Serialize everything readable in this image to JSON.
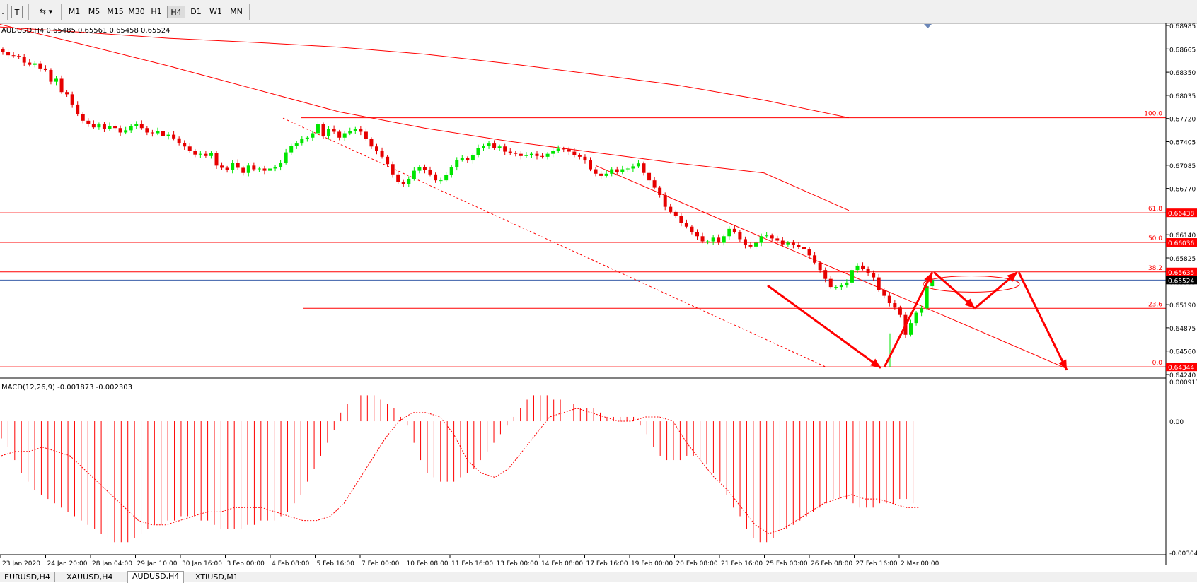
{
  "toolbar": {
    "timeframes": [
      "M1",
      "M5",
      "M15",
      "M30",
      "H1",
      "H4",
      "D1",
      "W1",
      "MN"
    ],
    "active": "H4"
  },
  "tabs": [
    {
      "label": "EURUSD,H4",
      "active": false
    },
    {
      "label": "XAUUSD,H4",
      "active": false
    },
    {
      "label": "AUDUSD,H4",
      "active": true
    },
    {
      "label": "XTIUSD,M1",
      "active": false
    }
  ],
  "colors": {
    "bull": "#00e600",
    "bear": "#e60000",
    "line": "#ff0000",
    "price_box": "#ff0000",
    "current_box": "#000000",
    "grid_text": "#000000",
    "current_line": "#3a5faa"
  },
  "chart_data": {
    "type": "candlestick",
    "symbol_info": "AUDUSD,H4  0.65485 0.65561 0.65458 0.65524",
    "ylim": [
      0.6424,
      0.68985
    ],
    "price_ticks": [
      "0.68985",
      "0.68665",
      "0.68350",
      "0.68035",
      "0.67720",
      "0.67405",
      "0.67085",
      "0.66770",
      "0.66455",
      "0.66140",
      "0.65825",
      "0.65505",
      "0.65190",
      "0.64875",
      "0.64560",
      "0.64240"
    ],
    "x_labels": [
      "23 Jan 2020",
      "24 Jan 20:00",
      "28 Jan 04:00",
      "29 Jan 10:00",
      "30 Jan 16:00",
      "3 Feb 00:00",
      "4 Feb 08:00",
      "5 Feb 16:00",
      "7 Feb 00:00",
      "10 Feb 08:00",
      "11 Feb 16:00",
      "13 Feb 00:00",
      "14 Feb 08:00",
      "17 Feb 16:00",
      "19 Feb 00:00",
      "20 Feb 08:00",
      "21 Feb 16:00",
      "25 Feb 00:00",
      "26 Feb 08:00",
      "27 Feb 16:00",
      "2 Mar 00:00"
    ],
    "fibonacci": [
      {
        "level": "100.0",
        "price": 0.6773,
        "box": ""
      },
      {
        "level": "61.8",
        "price": 0.66438,
        "box": "0.66438"
      },
      {
        "level": "50.0",
        "price": 0.66036,
        "box": "0.66036"
      },
      {
        "level": "38.2",
        "price": 0.65635,
        "box": "0.65635"
      },
      {
        "level": "23.6",
        "price": 0.6514,
        "box": ""
      },
      {
        "level": "0.0",
        "price": 0.64344,
        "box": "0.64344"
      }
    ],
    "current_price": 0.65524,
    "current_box": "0.65524",
    "closes": [
      0.6862,
      0.6858,
      0.6857,
      0.6856,
      0.6848,
      0.6845,
      0.6847,
      0.684,
      0.6838,
      0.6822,
      0.6826,
      0.6808,
      0.6805,
      0.6791,
      0.6778,
      0.6769,
      0.6765,
      0.676,
      0.6764,
      0.6758,
      0.6762,
      0.6759,
      0.6753,
      0.6756,
      0.6762,
      0.6765,
      0.6759,
      0.6753,
      0.6752,
      0.6755,
      0.6748,
      0.675,
      0.6745,
      0.6739,
      0.6734,
      0.6728,
      0.6723,
      0.6724,
      0.6721,
      0.6725,
      0.6708,
      0.6705,
      0.6702,
      0.6712,
      0.6705,
      0.6698,
      0.6708,
      0.6703,
      0.6704,
      0.6701,
      0.6704,
      0.6706,
      0.6712,
      0.6726,
      0.6735,
      0.6738,
      0.6744,
      0.6746,
      0.6752,
      0.6764,
      0.6748,
      0.6758,
      0.6754,
      0.6746,
      0.6752,
      0.6755,
      0.6758,
      0.6754,
      0.6744,
      0.6734,
      0.6728,
      0.672,
      0.671,
      0.6696,
      0.6686,
      0.6683,
      0.669,
      0.6701,
      0.6706,
      0.6702,
      0.6696,
      0.6688,
      0.6688,
      0.6695,
      0.6706,
      0.6716,
      0.6718,
      0.6715,
      0.6722,
      0.6732,
      0.6735,
      0.6738,
      0.6732,
      0.6734,
      0.6727,
      0.6725,
      0.6724,
      0.6721,
      0.6722,
      0.6724,
      0.6721,
      0.672,
      0.6724,
      0.6728,
      0.6731,
      0.673,
      0.6727,
      0.6722,
      0.672,
      0.6715,
      0.6703,
      0.6697,
      0.6694,
      0.6697,
      0.6703,
      0.6699,
      0.6703,
      0.6704,
      0.6707,
      0.6711,
      0.6698,
      0.6688,
      0.6678,
      0.6668,
      0.6652,
      0.6645,
      0.664,
      0.663,
      0.6625,
      0.6618,
      0.6612,
      0.6605,
      0.6605,
      0.661,
      0.6603,
      0.6612,
      0.6622,
      0.6618,
      0.6608,
      0.66,
      0.6598,
      0.6603,
      0.6612,
      0.6613,
      0.6609,
      0.6606,
      0.6601,
      0.6603,
      0.66,
      0.6597,
      0.6594,
      0.6586,
      0.6576,
      0.6566,
      0.6554,
      0.6543,
      0.6543,
      0.6545,
      0.6549,
      0.6566,
      0.6572,
      0.6568,
      0.6562,
      0.6556,
      0.6539,
      0.6531,
      0.6521,
      0.6515,
      0.6505,
      0.6478,
      0.6494,
      0.6508,
      0.6514,
      0.6544,
      0.65524
    ],
    "macd": {
      "label": "MACD(12,26,9) -0.001873 -0.002303",
      "ylim": [
        -0.003042,
        0.000917
      ],
      "ticks": [
        "0.000917",
        "0.00",
        "-0.003042"
      ],
      "hist": [
        -0.0004,
        -0.0006,
        -0.0009,
        -0.0012,
        -0.0014,
        -0.0016,
        -0.0017,
        -0.0018,
        -0.0019,
        -0.002,
        -0.0021,
        -0.0022,
        -0.0023,
        -0.0024,
        -0.0025,
        -0.0026,
        -0.0027,
        -0.0028,
        -0.0028,
        -0.0028,
        -0.0027,
        -0.0026,
        -0.0025,
        -0.0024,
        -0.0024,
        -0.0023,
        -0.0023,
        -0.0022,
        -0.0022,
        -0.0022,
        -0.0023,
        -0.0023,
        -0.0024,
        -0.0025,
        -0.0025,
        -0.0025,
        -0.0025,
        -0.0024,
        -0.0024,
        -0.0023,
        -0.0023,
        -0.0023,
        -0.0022,
        -0.0021,
        -0.0019,
        -0.0017,
        -0.0014,
        -0.0011,
        -0.0008,
        -0.0005,
        -0.0002,
        0.0002,
        0.0004,
        0.0005,
        0.0006,
        0.0006,
        0.0006,
        0.0005,
        0.0004,
        0.0003,
        0.0001,
        -0.0001,
        -0.0005,
        -0.0009,
        -0.0012,
        -0.0013,
        -0.0014,
        -0.0014,
        -0.0014,
        -0.0013,
        -0.0012,
        -0.0011,
        -0.0009,
        -0.0007,
        -0.0005,
        -0.0003,
        -0.0001,
        0.0001,
        0.0003,
        0.0005,
        0.0006,
        0.0006,
        0.0006,
        0.0005,
        0.0005,
        0.0004,
        0.0004,
        0.0003,
        0.0003,
        0.0003,
        0.0002,
        0.0001,
        0.0001,
        0.0001,
        0.0001,
        0.0001,
        -0.0001,
        -0.0003,
        -0.0006,
        -0.0008,
        -0.0009,
        -0.0009,
        -0.0009,
        -0.0008,
        -0.0008,
        -0.0009,
        -0.001,
        -0.0012,
        -0.0014,
        -0.0017,
        -0.002,
        -0.0022,
        -0.0025,
        -0.0027,
        -0.0028,
        -0.0028,
        -0.0027,
        -0.0026,
        -0.0025,
        -0.0024,
        -0.0023,
        -0.0022,
        -0.0021,
        -0.002,
        -0.0019,
        -0.0018,
        -0.0018,
        -0.0018,
        -0.0019,
        -0.002,
        -0.002,
        -0.002,
        -0.0019,
        -0.0019,
        -0.0019,
        -0.0018,
        -0.0018,
        -0.0019
      ],
      "signal": [
        -0.0008,
        -0.0007,
        -0.0007,
        -0.0006,
        -0.0007,
        -0.0008,
        -0.0011,
        -0.0014,
        -0.0017,
        -0.002,
        -0.0023,
        -0.0024,
        -0.0024,
        -0.0023,
        -0.0022,
        -0.0021,
        -0.0021,
        -0.002,
        -0.002,
        -0.002,
        -0.0021,
        -0.0022,
        -0.0023,
        -0.0023,
        -0.0022,
        -0.0019,
        -0.0014,
        -0.0009,
        -0.0004,
        0.0,
        0.0002,
        0.0002,
        0.0001,
        -0.0003,
        -0.0009,
        -0.0012,
        -0.0013,
        -0.0011,
        -0.0007,
        -0.0003,
        0.0001,
        0.0002,
        0.0003,
        0.0002,
        0.0001,
        0.0,
        0.0,
        0.0001,
        0.0001,
        0.0,
        -0.0005,
        -0.0009,
        -0.0013,
        -0.0016,
        -0.002,
        -0.0024,
        -0.0026,
        -0.0025,
        -0.0023,
        -0.0021,
        -0.0019,
        -0.0018,
        -0.0017,
        -0.0018,
        -0.0018,
        -0.0019,
        -0.002,
        -0.002
      ]
    },
    "moving_averages": [
      [
        [
          0,
          0.68965
        ],
        [
          120,
          0.6889
        ],
        [
          240,
          0.6881
        ],
        [
          360,
          0.68755
        ],
        [
          480,
          0.6869
        ],
        [
          600,
          0.68595
        ],
        [
          720,
          0.68465
        ],
        [
          840,
          0.6832
        ],
        [
          960,
          0.6817
        ],
        [
          1080,
          0.6797
        ],
        [
          1200,
          0.6773
        ]
      ],
      [
        [
          0,
          0.69
        ],
        [
          120,
          0.6872
        ],
        [
          240,
          0.6843
        ],
        [
          360,
          0.6812
        ],
        [
          480,
          0.6781
        ],
        [
          600,
          0.6759
        ],
        [
          720,
          0.6741
        ],
        [
          840,
          0.6726
        ],
        [
          960,
          0.6711
        ],
        [
          1080,
          0.6698
        ],
        [
          1200,
          0.6647
        ]
      ]
    ],
    "trend_lines": [
      {
        "from": [
          400,
          0.67725
        ],
        "to": [
          1168,
          0.6434
        ],
        "dashed": true
      },
      {
        "from": [
          842,
          0.6708
        ],
        "to": [
          1508,
          0.6432
        ],
        "dashed": false
      }
    ],
    "projection_arrows": [
      [
        [
          1085,
          0.6545
        ],
        [
          1245,
          0.6433
        ]
      ],
      [
        [
          1250,
          0.6434
        ],
        [
          1318,
          0.6563
        ]
      ],
      [
        [
          1320,
          0.6563
        ],
        [
          1378,
          0.6514
        ]
      ],
      [
        [
          1378,
          0.6514
        ],
        [
          1438,
          0.6563
        ]
      ],
      [
        [
          1440,
          0.6563
        ],
        [
          1508,
          0.643
        ]
      ]
    ],
    "ellipse": {
      "cx": 1373,
      "cy": 0.6547,
      "rx": 68,
      "ry_price": 0.0011
    }
  }
}
